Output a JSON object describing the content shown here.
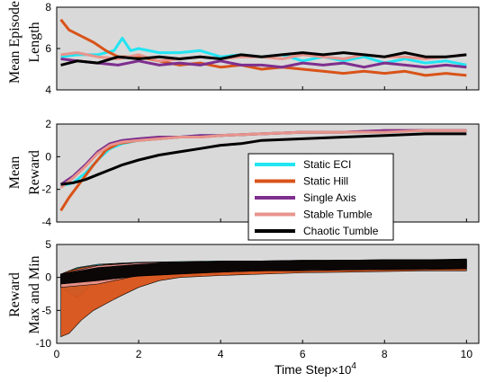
{
  "chart_data": [
    {
      "type": "line",
      "ylabel_lines": [
        "Mean Episode",
        "Length"
      ],
      "xlim": [
        0,
        10.3
      ],
      "ylim": [
        4,
        8
      ],
      "yticks": [
        4,
        6,
        8
      ],
      "ytick_labels": [
        "4",
        "6",
        "8"
      ],
      "grid": false,
      "series": [
        {
          "name": "Static ECI",
          "color": "#22e5f3",
          "x": [
            0.1,
            0.5,
            1.0,
            1.4,
            1.6,
            1.8,
            2.0,
            2.5,
            3.0,
            3.5,
            4.0,
            4.5,
            5.0,
            5.5,
            6.0,
            6.5,
            7.0,
            7.5,
            8.0,
            8.5,
            9.0,
            9.5,
            10.0
          ],
          "y": [
            5.6,
            5.7,
            5.7,
            5.9,
            6.5,
            5.9,
            6.0,
            5.8,
            5.8,
            5.9,
            5.6,
            5.7,
            5.6,
            5.7,
            5.4,
            5.6,
            5.4,
            5.6,
            5.3,
            5.5,
            5.3,
            5.4,
            5.2
          ]
        },
        {
          "name": "Static Hill",
          "color": "#d95319",
          "x": [
            0.1,
            0.3,
            0.6,
            0.9,
            1.2,
            1.5,
            2.0,
            2.5,
            3.0,
            3.5,
            4.0,
            4.5,
            5.0,
            5.5,
            6.0,
            6.5,
            7.0,
            7.5,
            8.0,
            8.5,
            9.0,
            9.5,
            10.0
          ],
          "y": [
            7.4,
            6.9,
            6.6,
            6.3,
            5.9,
            5.6,
            5.6,
            5.4,
            5.2,
            5.3,
            5.1,
            5.2,
            5.0,
            5.1,
            5.0,
            4.9,
            4.8,
            4.9,
            4.8,
            4.9,
            4.7,
            4.8,
            4.7
          ]
        },
        {
          "name": "Single Axis",
          "color": "#7e2f8e",
          "x": [
            0.1,
            0.5,
            1.0,
            1.5,
            2.0,
            2.5,
            3.0,
            3.5,
            4.0,
            4.5,
            5.0,
            5.5,
            6.0,
            6.5,
            7.0,
            7.5,
            8.0,
            8.5,
            9.0,
            9.5,
            10.0
          ],
          "y": [
            5.5,
            5.4,
            5.3,
            5.2,
            5.4,
            5.2,
            5.3,
            5.2,
            5.4,
            5.2,
            5.2,
            5.1,
            5.3,
            5.2,
            5.3,
            5.1,
            5.3,
            5.2,
            5.1,
            5.2,
            5.1
          ]
        },
        {
          "name": "Stable Tumble",
          "color": "#e8948c",
          "x": [
            0.1,
            0.5,
            1.0,
            1.5,
            2.0,
            2.5,
            3.0,
            3.5,
            4.0,
            4.5,
            5.0,
            5.5,
            6.0,
            6.5,
            7.0,
            7.5,
            8.0,
            8.5,
            9.0,
            9.5,
            10.0
          ],
          "y": [
            5.7,
            5.8,
            5.6,
            5.5,
            5.7,
            5.4,
            5.5,
            5.6,
            5.5,
            5.6,
            5.6,
            5.5,
            5.7,
            5.6,
            5.5,
            5.7,
            5.6,
            5.6,
            5.5,
            5.6,
            5.7
          ]
        },
        {
          "name": "Chaotic Tumble",
          "color": "#000000",
          "x": [
            0.1,
            0.5,
            1.0,
            1.5,
            2.0,
            2.5,
            3.0,
            3.5,
            4.0,
            4.5,
            5.0,
            5.5,
            6.0,
            6.5,
            7.0,
            7.5,
            8.0,
            8.5,
            9.0,
            9.5,
            10.0
          ],
          "y": [
            5.2,
            5.4,
            5.3,
            5.6,
            5.5,
            5.6,
            5.5,
            5.6,
            5.5,
            5.7,
            5.6,
            5.7,
            5.8,
            5.7,
            5.8,
            5.7,
            5.6,
            5.8,
            5.6,
            5.6,
            5.7
          ]
        }
      ]
    },
    {
      "type": "line",
      "ylabel_lines": [
        "Mean",
        "Reward"
      ],
      "xlim": [
        0,
        10.3
      ],
      "ylim": [
        -4,
        2
      ],
      "yticks": [
        -4,
        -2,
        0,
        2
      ],
      "ytick_labels": [
        "-4",
        "-2",
        "0",
        "2"
      ],
      "grid": false,
      "series": [
        {
          "name": "Static ECI",
          "color": "#22e5f3",
          "x": [
            0.1,
            0.4,
            0.7,
            1.0,
            1.3,
            1.6,
            2.0,
            2.5,
            3.0,
            3.5,
            4.0,
            5.0,
            6.0,
            7.0,
            8.0,
            9.0,
            10.0
          ],
          "y": [
            -1.8,
            -1.6,
            -1.0,
            -0.2,
            0.5,
            0.8,
            1.0,
            1.1,
            1.2,
            1.3,
            1.3,
            1.4,
            1.5,
            1.5,
            1.5,
            1.6,
            1.6
          ]
        },
        {
          "name": "Static Hill",
          "color": "#d95319",
          "x": [
            0.1,
            0.3,
            0.6,
            0.9,
            1.2,
            1.5,
            2.0,
            2.5,
            3.0,
            3.5,
            4.0,
            5.0,
            6.0,
            7.0,
            8.0,
            9.0,
            10.0
          ],
          "y": [
            -3.3,
            -2.5,
            -1.5,
            -0.5,
            0.4,
            0.8,
            1.0,
            1.1,
            1.2,
            1.2,
            1.3,
            1.4,
            1.5,
            1.5,
            1.6,
            1.6,
            1.6
          ]
        },
        {
          "name": "Single Axis",
          "color": "#7e2f8e",
          "x": [
            0.1,
            0.4,
            0.7,
            1.0,
            1.3,
            1.6,
            2.0,
            2.5,
            3.0,
            3.5,
            4.0,
            5.0,
            6.0,
            7.0,
            8.0,
            9.0,
            10.0
          ],
          "y": [
            -1.7,
            -1.2,
            -0.5,
            0.3,
            0.8,
            1.0,
            1.1,
            1.2,
            1.2,
            1.3,
            1.3,
            1.4,
            1.5,
            1.5,
            1.6,
            1.6,
            1.6
          ]
        },
        {
          "name": "Stable Tumble",
          "color": "#e8948c",
          "x": [
            0.1,
            0.4,
            0.7,
            1.0,
            1.3,
            1.6,
            2.0,
            2.5,
            3.0,
            3.5,
            4.0,
            5.0,
            6.0,
            7.0,
            8.0,
            9.0,
            10.0
          ],
          "y": [
            -1.9,
            -1.3,
            -0.6,
            0.2,
            0.7,
            0.9,
            1.0,
            1.1,
            1.2,
            1.2,
            1.3,
            1.4,
            1.5,
            1.5,
            1.5,
            1.6,
            1.6
          ]
        },
        {
          "name": "Chaotic Tumble",
          "color": "#000000",
          "x": [
            0.1,
            0.4,
            0.7,
            1.0,
            1.3,
            1.6,
            2.0,
            2.5,
            3.0,
            3.5,
            4.0,
            4.5,
            5.0,
            6.0,
            7.0,
            8.0,
            9.0,
            10.0
          ],
          "y": [
            -1.7,
            -1.6,
            -1.4,
            -1.1,
            -0.8,
            -0.5,
            -0.2,
            0.1,
            0.3,
            0.5,
            0.7,
            0.8,
            1.0,
            1.1,
            1.2,
            1.3,
            1.4,
            1.4
          ]
        }
      ]
    },
    {
      "type": "area",
      "ylabel_lines": [
        "Reward",
        "Max and Min"
      ],
      "xlabel": "Time Step",
      "x_multiplier": "×10",
      "x_multiplier_exp": "4",
      "xlim": [
        0,
        10.3
      ],
      "ylim": [
        -10,
        5
      ],
      "yticks": [
        -10,
        -5,
        0,
        5
      ],
      "ytick_labels": [
        "-10",
        "-5",
        "0",
        "5"
      ],
      "xticks": [
        0,
        2,
        4,
        6,
        8,
        10
      ],
      "xtick_labels": [
        "0",
        "2",
        "4",
        "6",
        "8",
        "10"
      ],
      "grid": false,
      "series": [
        {
          "name": "Static ECI",
          "color": "#22e5f3",
          "x": [
            0.1,
            0.5,
            1.0,
            2.0,
            3.0,
            4.0,
            5.0,
            6.0,
            7.0,
            8.0,
            9.0,
            10.0
          ],
          "max": [
            0.5,
            1.5,
            2.0,
            2.3,
            2.4,
            2.5,
            2.5,
            2.6,
            2.6,
            2.7,
            2.7,
            2.7
          ],
          "min": [
            -1.5,
            -3.0,
            -0.5,
            0.5,
            0.8,
            1.0,
            1.2,
            1.3,
            1.4,
            1.5,
            1.5,
            1.6
          ]
        },
        {
          "name": "Static Hill",
          "color": "#d95319",
          "x": [
            0.1,
            0.3,
            0.6,
            0.9,
            1.2,
            1.5,
            2.0,
            2.5,
            3.0,
            4.0,
            5.0,
            6.0,
            7.0,
            8.0,
            9.0,
            10.0
          ],
          "max": [
            0.5,
            1.0,
            1.5,
            1.8,
            2.0,
            2.1,
            2.2,
            2.3,
            2.3,
            2.4,
            2.5,
            2.5,
            2.6,
            2.6,
            2.6,
            2.7
          ],
          "min": [
            -9.0,
            -8.5,
            -6.5,
            -5.0,
            -4.0,
            -3.0,
            -1.5,
            -0.5,
            0.0,
            0.3,
            0.5,
            0.7,
            0.8,
            0.9,
            1.0,
            1.0
          ]
        },
        {
          "name": "Single Axis",
          "color": "#7e2f8e",
          "x": [
            0.1,
            1.0,
            2.0,
            3.0,
            4.0,
            5.0,
            6.0,
            7.0,
            8.0,
            9.0,
            10.0
          ],
          "max": [
            0.5,
            1.8,
            2.2,
            2.3,
            2.4,
            2.5,
            2.5,
            2.6,
            2.6,
            2.6,
            2.7
          ],
          "min": [
            -1.0,
            0.0,
            0.5,
            0.8,
            0.9,
            1.0,
            1.1,
            1.2,
            1.2,
            1.3,
            1.3
          ]
        },
        {
          "name": "Stable Tumble",
          "color": "#e8948c",
          "x": [
            0.1,
            1.0,
            2.0,
            3.0,
            4.0,
            5.0,
            6.0,
            7.0,
            8.0,
            9.0,
            10.0
          ],
          "max": [
            0.5,
            1.8,
            2.2,
            2.3,
            2.4,
            2.5,
            2.5,
            2.6,
            2.6,
            2.6,
            2.7
          ],
          "min": [
            -1.5,
            -1.0,
            0.3,
            0.6,
            0.8,
            1.0,
            1.0,
            1.1,
            1.2,
            1.2,
            1.3
          ]
        },
        {
          "name": "Chaotic Tumble",
          "color": "#000000",
          "x": [
            0.1,
            1.0,
            2.0,
            3.0,
            4.0,
            5.0,
            6.0,
            7.0,
            8.0,
            9.0,
            10.0
          ],
          "max": [
            0.5,
            1.5,
            2.0,
            2.3,
            2.4,
            2.5,
            2.6,
            2.6,
            2.7,
            2.7,
            2.8
          ],
          "min": [
            -1.0,
            -0.5,
            0.2,
            0.5,
            0.8,
            1.0,
            1.1,
            1.2,
            1.2,
            1.3,
            1.3
          ]
        }
      ]
    }
  ],
  "legend": {
    "placement": "center-right",
    "entries": [
      {
        "label": "Static ECI",
        "color": "#22e5f3"
      },
      {
        "label": "Static Hill",
        "color": "#d95319"
      },
      {
        "label": "Single Axis",
        "color": "#7e2f8e"
      },
      {
        "label": "Stable Tumble",
        "color": "#e8948c"
      },
      {
        "label": "Chaotic Tumble",
        "color": "#000000"
      }
    ]
  },
  "colors": {
    "axes_background": "#d9d9d9",
    "axis": "#000000"
  }
}
